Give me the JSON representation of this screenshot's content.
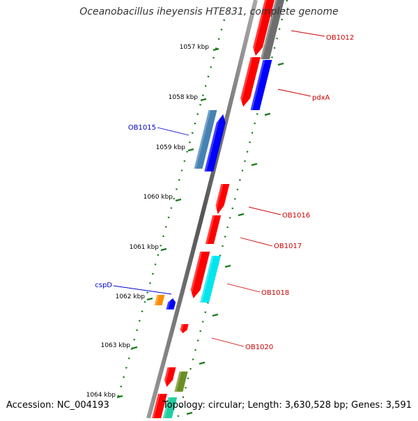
{
  "title": "Oceanobacillus iheyensis HTE831, complete genome",
  "footer": {
    "accession": "Accession: NC_004193",
    "topology": "Topology: circular; Length: 3,630,528 bp; Genes: 3,591"
  },
  "colors": {
    "red": "#ff0000",
    "blue": "#0000ff",
    "steelblue": "#4682b4",
    "gray": "#6e6e6e",
    "cyan": "#00e5ee",
    "orange": "#ff8c00",
    "olive": "#6b8e23",
    "teal": "#20d0a0",
    "tick": "#1a7a1a",
    "label_forward": "#cc0000",
    "label_reverse": "#0000cc"
  },
  "ticks": [
    {
      "label": "1057 kbp"
    },
    {
      "label": "1058 kbp"
    },
    {
      "label": "1059 kbp"
    },
    {
      "label": "1060 kbp"
    },
    {
      "label": "1061 kbp"
    },
    {
      "label": "1062 kbp"
    },
    {
      "label": "1063 kbp"
    },
    {
      "label": "1064 kbp"
    }
  ],
  "gene_labels": [
    {
      "label": "OB1012",
      "strand": "forward"
    },
    {
      "label": "pdxA",
      "strand": "forward"
    },
    {
      "label": "OB1015",
      "strand": "reverse"
    },
    {
      "label": "OB1016",
      "strand": "forward"
    },
    {
      "label": "OB1017",
      "strand": "forward"
    },
    {
      "label": "cspD",
      "strand": "reverse"
    },
    {
      "label": "OB1018",
      "strand": "forward"
    },
    {
      "label": "OB1020",
      "strand": "forward"
    }
  ]
}
